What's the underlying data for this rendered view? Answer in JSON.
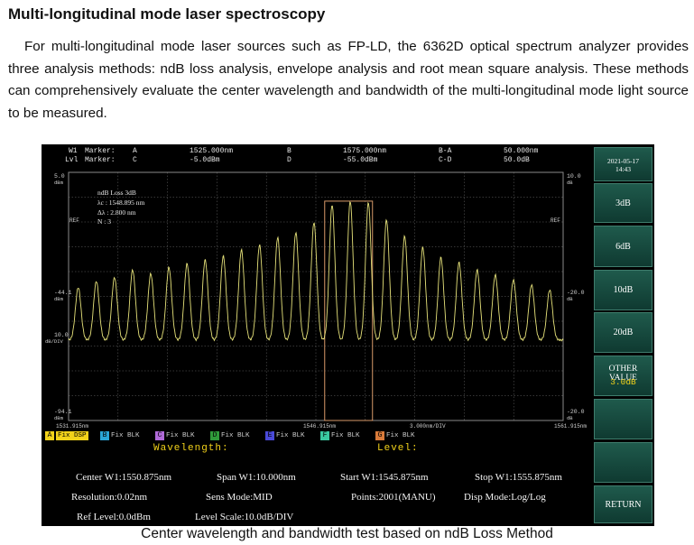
{
  "document": {
    "title": "Multi-longitudinal mode laser spectroscopy",
    "paragraph": "For multi-longitudinal mode laser sources such as FP-LD, the 6362D optical spectrum analyzer provides three analysis methods: ndB loss analysis, envelope analysis and root mean square analysis. These methods can comprehensively evaluate the center wavelength and bandwidth of the multi-longitudinal mode light source to be measured.",
    "caption": "Center wavelength and bandwidth test based on ndB Loss Method"
  },
  "marker_bar": {
    "w1": "W1",
    "lvl1": "Lvl",
    "marker_label": "Marker:",
    "a": "A",
    "a_wl": "1525.000nm",
    "c": "C",
    "c_lvl": "-5.0dBm",
    "b": "B",
    "b_wl": "1575.000nm",
    "d": "D",
    "d_lvl": "-55.0dBm",
    "ba": "B-A",
    "ba_val": "50.000nm",
    "cd": "C-D",
    "cd_val": "50.0dB"
  },
  "plot": {
    "top_left_val": "5.0",
    "top_left_unit": "dBm",
    "mid_left_val": "-44.1",
    "mid_left_unit": "dBm",
    "scale_val": "10.0",
    "scale_unit": "dB/DIV",
    "bot_left_val": "-94.1",
    "bot_left_unit": "dBm",
    "top_right_val": "10.0",
    "top_right_unit": "dB",
    "mid_right_val": "-20.0",
    "mid_right_unit": "dB",
    "bot_right_val": "-20.0",
    "bot_right_unit": "dB",
    "ref_left": "REF",
    "ref_right": "REF",
    "x_start": "1531.915nm",
    "x_center": "1546.915nm",
    "x_div": "3.000nm/DIV",
    "x_stop": "1561.915nm",
    "annotation": {
      "title": "ndB Loss 3dB",
      "lc": "λc  : 1548.895 nm",
      "dl": "Δλ  : 2.800 nm",
      "n": "N    : 3"
    }
  },
  "chart_data": {
    "type": "line",
    "x_range_nm": [
      1531.915,
      1561.915
    ],
    "y_range_dbm": [
      -94.1,
      5.0
    ],
    "grid": true,
    "mode_peaks_nm": [
      1532.5,
      1533.6,
      1534.7,
      1535.8,
      1536.9,
      1538.0,
      1539.1,
      1540.2,
      1541.3,
      1542.4,
      1543.5,
      1544.6,
      1545.7,
      1546.8,
      1547.9,
      1549.0,
      1550.1,
      1551.2,
      1552.3,
      1553.4,
      1554.5,
      1555.6,
      1556.7,
      1557.8,
      1558.9,
      1560.0,
      1561.1
    ],
    "mode_peaks_dbm": [
      -41,
      -38.5,
      -37,
      -34,
      -35.5,
      -33,
      -31.5,
      -30,
      -28.5,
      -26,
      -24,
      -21,
      -19,
      -15,
      -8,
      -6.5,
      -7,
      -14,
      -20.5,
      -25,
      -29,
      -31,
      -34,
      -36,
      -38,
      -40,
      -42
    ],
    "trough_dbm": -62,
    "ndb_box_nm": [
      1547.45,
      1550.35
    ],
    "ndb_level_dbm": -6.5
  },
  "legend": [
    {
      "letter": "A",
      "color": "#f2d21a",
      "text": "Fix DSP"
    },
    {
      "letter": "B",
      "color": "#2aa6d8",
      "text": "Fix BLK"
    },
    {
      "letter": "C",
      "color": "#b06ad8",
      "text": "Fix BLK"
    },
    {
      "letter": "D",
      "color": "#2f9a3a",
      "text": "Fix BLK"
    },
    {
      "letter": "E",
      "color": "#4a4ad8",
      "text": "Fix BLK"
    },
    {
      "letter": "F",
      "color": "#3ac8a0",
      "text": "Fix BLK"
    },
    {
      "letter": "G",
      "color": "#d87a3a",
      "text": "Fix BLK"
    }
  ],
  "tabs": {
    "wavelength": "Wavelength:",
    "level": "Level:"
  },
  "params": {
    "center": "Center W1:1550.875nm",
    "span": "Span W1:10.000nm",
    "start": "Start W1:1545.875nm",
    "stop": "Stop W1:1555.875nm",
    "resolution": "Resolution:0.02nm",
    "sens": "Sens Mode:MID",
    "points": "Points:2001(MANU)",
    "disp": "Disp Mode:Log/Log",
    "ref": "Ref Level:0.0dBm",
    "scale": "Level Scale:10.0dB/DIV"
  },
  "sidebar": {
    "date": "2021-05-17",
    "time": "14:43",
    "btn_3db": "3dB",
    "btn_6db": "6dB",
    "btn_10db": "10dB",
    "btn_20db": "20dB",
    "btn_other": "OTHER VALUE",
    "btn_other_val": "3.0dB",
    "btn_return": "RETURN"
  },
  "colors": {
    "trace": "#e6e27a",
    "grid": "#6a6a6a",
    "box": "#d89a6a",
    "tab_text": "#f2d21a"
  }
}
